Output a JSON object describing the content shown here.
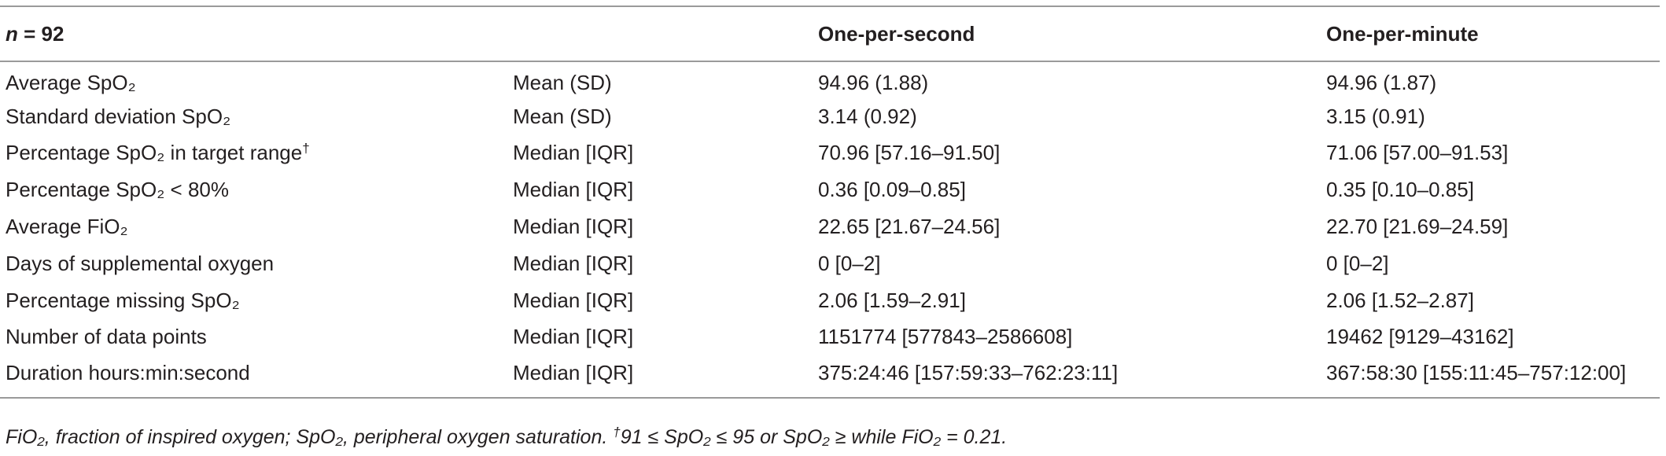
{
  "table": {
    "header": {
      "n_symbol": "n",
      "n_value": "= 92",
      "columns": [
        "One-per-second",
        "One-per-minute"
      ]
    },
    "rows": [
      {
        "label": "Average SpO₂",
        "stat": "Mean (SD)",
        "per_second": "94.96 (1.88)",
        "per_minute": "94.96 (1.87)"
      },
      {
        "label": "Standard deviation SpO₂",
        "stat": "Mean (SD)",
        "per_second": "3.14 (0.92)",
        "per_minute": "3.15 (0.91)"
      },
      {
        "label": "Percentage SpO₂ in target range",
        "mark": "†",
        "stat": "Median [IQR]",
        "per_second": "70.96 [57.16–91.50]",
        "per_minute": "71.06 [57.00–91.53]"
      },
      {
        "label": "Percentage SpO₂ < 80%",
        "stat": "Median [IQR]",
        "per_second": "0.36 [0.09–0.85]",
        "per_minute": "0.35 [0.10–0.85]"
      },
      {
        "label": "Average FiO₂",
        "stat": "Median [IQR]",
        "per_second": "22.65 [21.67–24.56]",
        "per_minute": "22.70 [21.69–24.59]"
      },
      {
        "label": "Days of supplemental oxygen",
        "stat": "Median [IQR]",
        "per_second": "0 [0–2]",
        "per_minute": "0 [0–2]"
      },
      {
        "label": "Percentage missing SpO₂",
        "stat": "Median [IQR]",
        "per_second": "2.06 [1.59–2.91]",
        "per_minute": "2.06 [1.52–2.87]"
      },
      {
        "label": "Number of data points",
        "stat": "Median [IQR]",
        "per_second": "1151774 [577843–2586608]",
        "per_minute": "19462 [9129–43162]"
      },
      {
        "label": "Duration hours:min:second",
        "stat": "Median [IQR]",
        "per_second": "375:24:46 [157:59:33–762:23:11]",
        "per_minute": "367:58:30 [155:11:45–757:12:00]"
      }
    ],
    "footnote": {
      "definitions": "FiO₂, fraction of inspired oxygen; SpO₂, peripheral oxygen saturation.",
      "mark": "†",
      "note": "91 ≤ SpO₂ ≤ 95 or SpO₂ ≥ while FiO₂ = 0.21."
    }
  }
}
